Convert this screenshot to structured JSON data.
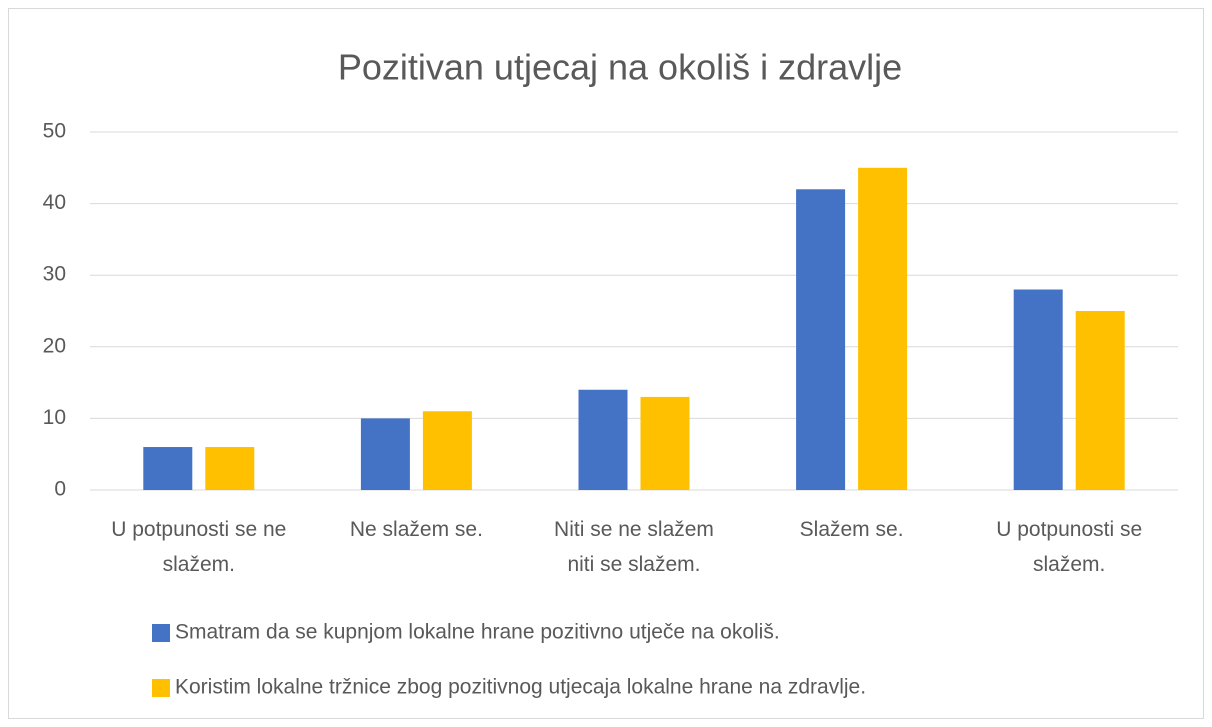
{
  "chart_data": {
    "type": "bar",
    "title": "Pozitivan utjecaj na okoliš i zdravlje",
    "categories": [
      "U potpunosti se ne slažem.",
      "Ne slažem se.",
      "Niti se ne slažem niti se slažem.",
      "Slažem se.",
      "U potpunosti se slažem."
    ],
    "series": [
      {
        "name": "Smatram da se kupnjom lokalne hrane pozitivno utječe na okoliš.",
        "color": "#4472c4",
        "values": [
          6,
          10,
          14,
          42,
          28
        ]
      },
      {
        "name": "Koristim lokalne tržnice zbog pozitivnog utjecaja lokalne hrane na zdravlje.",
        "color": "#ffc000",
        "values": [
          6,
          11,
          13,
          45,
          25
        ]
      }
    ],
    "ylim": [
      0,
      50
    ],
    "yticks": [
      0,
      10,
      20,
      30,
      40,
      50
    ],
    "grid": true,
    "legend": "bottom"
  }
}
